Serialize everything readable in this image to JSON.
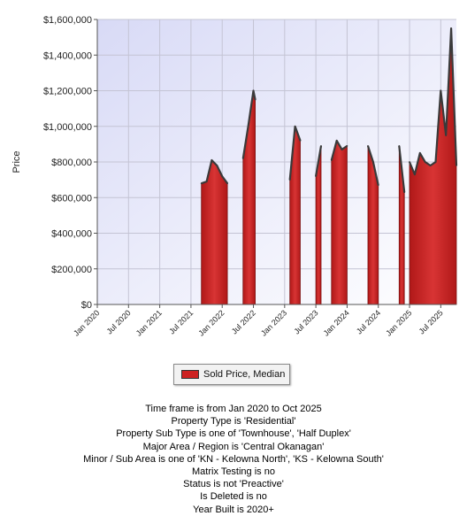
{
  "chart_data": {
    "type": "area",
    "ylabel": "Price",
    "ylim": [
      0,
      1600000
    ],
    "yticks": [
      0,
      200000,
      400000,
      600000,
      800000,
      1000000,
      1200000,
      1400000,
      1600000
    ],
    "ytick_labels": [
      "$0",
      "$200,000",
      "$400,000",
      "$600,000",
      "$800,000",
      "$1,000,000",
      "$1,200,000",
      "$1,400,000",
      "$1,600,000"
    ],
    "xlim": [
      "2020-01",
      "2025-10"
    ],
    "xtick_labels": [
      "Jan 2020",
      "Jul 2020",
      "Jan 2021",
      "Jul 2021",
      "Jan 2022",
      "Jul 2022",
      "Jan 2023",
      "Jul 2023",
      "Jan 2024",
      "Jul 2024",
      "Jan 2025",
      "Jul 2025"
    ],
    "xtick_dates": [
      "2020-01",
      "2020-07",
      "2021-01",
      "2021-07",
      "2022-01",
      "2022-07",
      "2023-01",
      "2023-07",
      "2024-01",
      "2024-07",
      "2025-01",
      "2025-07"
    ],
    "grid": true,
    "legend_position": "bottom",
    "series": [
      {
        "name": "Sold Price, Median",
        "color": "#cc2222",
        "segments": [
          [
            [
              "2021-09",
              680000
            ],
            [
              "2021-10",
              690000
            ],
            [
              "2021-11",
              810000
            ],
            [
              "2021-12",
              780000
            ],
            [
              "2022-01",
              720000
            ],
            [
              "2022-02",
              680000
            ]
          ],
          [
            [
              "2022-05",
              820000
            ],
            [
              "2022-06",
              1000000
            ],
            [
              "2022-07",
              1200000
            ],
            [
              "2022-07",
              1150000
            ]
          ],
          [
            [
              "2023-02",
              700000
            ],
            [
              "2023-03",
              1000000
            ],
            [
              "2023-04",
              920000
            ]
          ],
          [
            [
              "2023-07",
              720000
            ],
            [
              "2023-08",
              890000
            ]
          ],
          [
            [
              "2023-10",
              810000
            ],
            [
              "2023-11",
              920000
            ],
            [
              "2023-12",
              870000
            ],
            [
              "2024-01",
              890000
            ]
          ],
          [
            [
              "2024-05",
              890000
            ],
            [
              "2024-06",
              800000
            ],
            [
              "2024-07",
              670000
            ]
          ],
          [
            [
              "2024-11",
              890000
            ],
            [
              "2024-12",
              630000
            ]
          ],
          [
            [
              "2025-01",
              800000
            ],
            [
              "2025-02",
              730000
            ],
            [
              "2025-03",
              850000
            ],
            [
              "2025-04",
              800000
            ],
            [
              "2025-05",
              780000
            ],
            [
              "2025-06",
              800000
            ],
            [
              "2025-07",
              1200000
            ],
            [
              "2025-08",
              950000
            ],
            [
              "2025-09",
              1550000
            ],
            [
              "2025-10",
              780000
            ]
          ]
        ]
      }
    ]
  },
  "legend": {
    "label": "Sold Price, Median"
  },
  "criteria": [
    "Time frame is from Jan 2020 to Oct 2025",
    "Property Type is 'Residential'",
    "Property Sub Type is one of 'Townhouse', 'Half Duplex'",
    "Major Area / Region is 'Central Okanagan'",
    "Minor / Sub Area is one of 'KN - Kelowna North', 'KS - Kelowna South'",
    "Matrix Testing is no",
    "Status is not 'Preactive'",
    "Is Deleted is no",
    "Year Built is 2020+"
  ]
}
